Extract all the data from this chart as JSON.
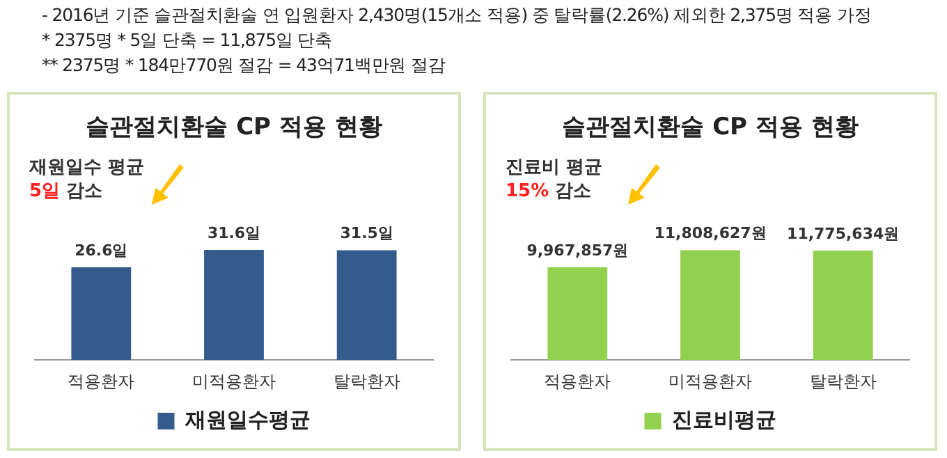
{
  "chart_data": [
    {
      "type": "other",
      "annotations": [
        "- 2016년 기준 슬관절치환술 연 입원환자 2,430명(15개소 적용) 중 탈락률(2.26%) 제외한 2,375명 적용 가정",
        "* 2375명 * 5일 단축 = 11,875일 단축",
        "** 2375명 * 184만770원 절감 = 43억71백만원 절감"
      ]
    },
    {
      "type": "bar",
      "title": "슬관절치환술 CP 적용 현황",
      "categories": [
        "적용환자",
        "미적용환자",
        "탈락환자"
      ],
      "legend": "bottom",
      "annotations": [
        "재원일수 평균\n5일 감소"
      ],
      "series": [
        {
          "name": "재원일수평균",
          "color": "#335b8c",
          "values": [
            26.6,
            31.6,
            31.5
          ],
          "value_labels": [
            "26.6일",
            "31.6일",
            "31.5일"
          ]
        }
      ]
    },
    {
      "type": "bar",
      "title": "슬관절치환술 CP 적용 현황",
      "categories": [
        "적용환자",
        "미적용환자",
        "탈락환자"
      ],
      "legend": "bottom",
      "annotations": [
        "진료비 평균\n15% 감소"
      ],
      "series": [
        {
          "name": "진료비평균",
          "color": "#92d050",
          "values": [
            9967857,
            11808627,
            11775634
          ],
          "value_labels": [
            "9,967,857원",
            "11,808,627원",
            "11,775,634원"
          ]
        }
      ]
    }
  ]
}
